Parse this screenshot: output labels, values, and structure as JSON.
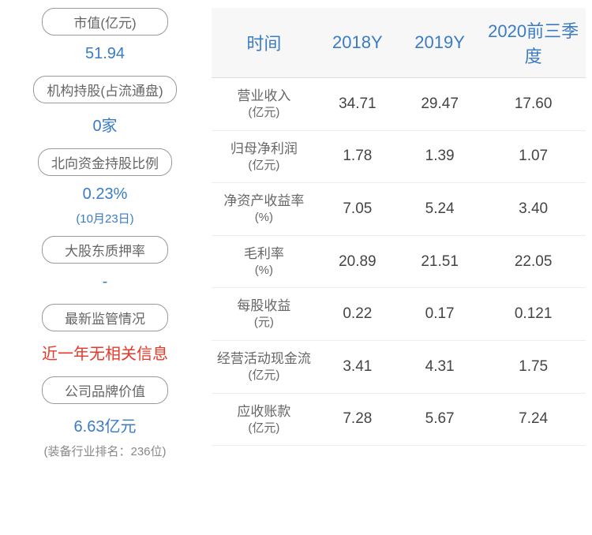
{
  "left": {
    "items": [
      {
        "label": "市值(亿元)",
        "value": "51.94",
        "value_color": "#3b7bc4"
      },
      {
        "label": "机构持股(占流通盘)",
        "value": "0家",
        "value_color": "#3b7bc4"
      },
      {
        "label": "北向资金持股比例",
        "value": "0.23%",
        "subvalue": "(10月23日)",
        "value_color": "#3b7bc4",
        "subvalue_color": "#3b7bc4"
      },
      {
        "label": "大股东质押率",
        "value": "-",
        "value_color": "#3b7bc4"
      },
      {
        "label": "最新监管情况",
        "value": "近一年无相关信息",
        "value_color": "#e83828"
      },
      {
        "label": "公司品牌价值",
        "value": "6.63亿元",
        "subvalue": "(装备行业排名：236位)",
        "value_color": "#3b7bc4",
        "subvalue_color": "#888888"
      }
    ]
  },
  "table": {
    "headers": [
      "时间",
      "2018Y",
      "2019Y",
      "2020前三季度"
    ],
    "rows": [
      {
        "label": "营业收入",
        "unit": "(亿元)",
        "values": [
          "34.71",
          "29.47",
          "17.60"
        ]
      },
      {
        "label": "归母净利润",
        "unit": "(亿元)",
        "values": [
          "1.78",
          "1.39",
          "1.07"
        ]
      },
      {
        "label": "净资产收益率",
        "unit": "(%)",
        "values": [
          "7.05",
          "5.24",
          "3.40"
        ]
      },
      {
        "label": "毛利率",
        "unit": "(%)",
        "values": [
          "20.89",
          "21.51",
          "22.05"
        ]
      },
      {
        "label": "每股收益",
        "unit": "(元)",
        "values": [
          "0.22",
          "0.17",
          "0.121"
        ]
      },
      {
        "label": "经营活动现金流",
        "unit": "(亿元)",
        "values": [
          "3.41",
          "4.31",
          "1.75"
        ]
      },
      {
        "label": "应收账款",
        "unit": "(亿元)",
        "values": [
          "7.28",
          "5.67",
          "7.24"
        ]
      }
    ],
    "column_widths": [
      "28%",
      "22%",
      "22%",
      "28%"
    ],
    "header_bg": "#f7f7f7",
    "header_color": "#3b7bc4",
    "border_color": "#dddddd",
    "cell_color": "#444444"
  }
}
